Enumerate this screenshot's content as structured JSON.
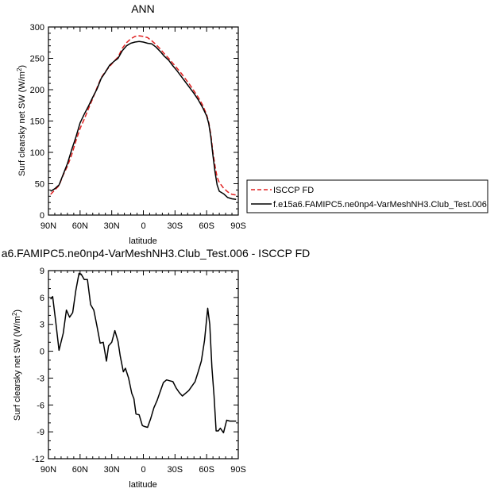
{
  "chart_data": [
    {
      "type": "line",
      "title": "ANN",
      "xlabel": "latitude",
      "ylabel": "Surf clearsky net SW (W/m²)",
      "xlim": [
        90,
        -90
      ],
      "ylim": [
        0,
        300
      ],
      "xticks": [
        90,
        60,
        30,
        0,
        -30,
        -60,
        -90
      ],
      "xtick_labels": [
        "90N",
        "60N",
        "30N",
        "0",
        "30S",
        "60S",
        "90S"
      ],
      "yticks": [
        0,
        50,
        100,
        150,
        200,
        250,
        300
      ],
      "ytick_labels": [
        "0",
        "50",
        "100",
        "150",
        "200",
        "250",
        "300"
      ],
      "legend": "right",
      "series": [
        {
          "name": "ISCCP FD",
          "color": "#e02020",
          "dash": "dashed",
          "x": [
            88,
            84,
            80,
            76,
            72,
            68,
            64,
            60,
            56,
            52,
            48,
            44,
            40,
            36,
            32,
            28,
            24,
            20,
            16,
            12,
            8,
            4,
            0,
            -4,
            -8,
            -12,
            -16,
            -20,
            -24,
            -28,
            -32,
            -36,
            -40,
            -44,
            -48,
            -52,
            -56,
            -60,
            -62,
            -64,
            -66,
            -68,
            -70,
            -72,
            -76,
            -80,
            -84,
            -88
          ],
          "y": [
            33,
            40,
            47,
            64,
            78,
            96,
            118,
            138,
            153,
            170,
            186,
            203,
            219,
            229,
            237,
            245,
            252,
            266,
            275,
            281,
            285,
            286,
            285,
            283,
            278,
            272,
            265,
            257,
            250,
            242,
            234,
            226,
            217,
            208,
            198,
            188,
            176,
            160,
            148,
            128,
            100,
            78,
            60,
            52,
            43,
            37,
            33,
            32
          ]
        },
        {
          "name": "f.e15a6.FAMIPC5.ne0np4-VarMeshNH3.Club_Test.006",
          "color": "#000000",
          "dash": "solid",
          "x": [
            88,
            84,
            80,
            76,
            72,
            68,
            64,
            60,
            56,
            52,
            48,
            44,
            40,
            36,
            32,
            28,
            24,
            20,
            16,
            12,
            8,
            4,
            0,
            -4,
            -8,
            -12,
            -16,
            -20,
            -24,
            -28,
            -32,
            -36,
            -40,
            -44,
            -48,
            -52,
            -56,
            -60,
            -62,
            -64,
            -66,
            -68,
            -70,
            -72,
            -76,
            -80,
            -84,
            -88
          ],
          "y": [
            38,
            42,
            48,
            65,
            82,
            104,
            124,
            147,
            161,
            174,
            188,
            201,
            218,
            228,
            239,
            245,
            250,
            262,
            270,
            274,
            276,
            277,
            276,
            274,
            273,
            268,
            261,
            253,
            247,
            238,
            230,
            221,
            212,
            203,
            194,
            184,
            172,
            158,
            146,
            124,
            95,
            68,
            48,
            38,
            34,
            28,
            26,
            25
          ]
        }
      ]
    },
    {
      "type": "line",
      "title": "a6.FAMIPC5.ne0np4-VarMeshNH3.Club_Test.006 - ISCCP FD",
      "xlabel": "latitude",
      "ylabel": "Surf clearsky net SW (W/m²)",
      "xlim": [
        90,
        -90
      ],
      "ylim": [
        -12,
        9
      ],
      "xticks": [
        90,
        60,
        30,
        0,
        -30,
        -60,
        -90
      ],
      "xtick_labels": [
        "90N",
        "60N",
        "30N",
        "0",
        "30S",
        "60S",
        "90S"
      ],
      "yticks": [
        -12,
        -9,
        -6,
        -3,
        0,
        3,
        6,
        9
      ],
      "ytick_labels": [
        "-12",
        "-9",
        "-6",
        "-3",
        "0",
        "3",
        "6",
        "9"
      ],
      "series": [
        {
          "color": "#000000",
          "dash": "solid",
          "x": [
            88,
            86,
            83,
            80,
            76,
            73,
            70,
            67,
            64,
            61,
            59,
            56,
            53,
            50,
            47,
            44,
            41,
            38,
            35,
            33,
            30,
            27,
            24,
            22,
            19,
            17,
            14,
            11,
            9,
            7,
            4,
            1,
            -1,
            -4,
            -7,
            -10,
            -13,
            -16,
            -19,
            -22,
            -25,
            -28,
            -31,
            -34,
            -37,
            -40,
            -43,
            -46,
            -49,
            -52,
            -55,
            -58,
            -61,
            -63,
            -65,
            -67,
            -69,
            -71,
            -73,
            -76,
            -79,
            -82,
            -85,
            -88
          ],
          "y": [
            5.8,
            6.1,
            3.2,
            0.1,
            2.0,
            4.6,
            3.8,
            4.3,
            6.8,
            8.7,
            8.6,
            8.0,
            8.0,
            5.2,
            4.6,
            2.8,
            0.9,
            1.0,
            -1.1,
            0.6,
            1.0,
            2.3,
            1.1,
            -0.5,
            -2.3,
            -1.9,
            -3.0,
            -4.7,
            -5.3,
            -7.0,
            -7.1,
            -8.3,
            -8.4,
            -8.5,
            -7.5,
            -6.3,
            -5.5,
            -4.5,
            -3.5,
            -3.2,
            -3.3,
            -3.4,
            -4.1,
            -4.6,
            -5.0,
            -4.7,
            -4.4,
            -3.9,
            -3.4,
            -2.3,
            -1.1,
            1.2,
            4.8,
            3.0,
            -1.8,
            -5.0,
            -8.9,
            -8.9,
            -8.6,
            -9.1,
            -7.7,
            -7.8,
            -7.8,
            -7.8
          ]
        }
      ]
    }
  ]
}
